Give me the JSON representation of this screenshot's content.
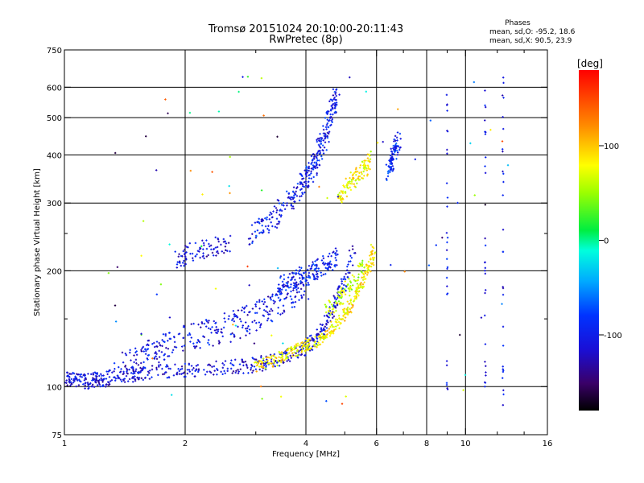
{
  "chart_data": {
    "type": "scatter",
    "title": "Tromsø 20151024 20:10:00-20:11:43",
    "subtitle": "RwPretec (8p)",
    "xlabel": "Frequency [MHz]",
    "ylabel": "Stationary phase Virtual Height [km]",
    "x_scale": "log",
    "y_scale": "log",
    "xlim": [
      1,
      16
    ],
    "ylim": [
      75,
      750
    ],
    "x_ticks": [
      1,
      2,
      4,
      6,
      8,
      10,
      16
    ],
    "x_tick_labels": [
      "1",
      "2",
      "4",
      "6",
      "8",
      "10",
      "16"
    ],
    "x_grid": [
      2,
      4,
      6,
      8,
      10
    ],
    "x_minor_ticks": [
      3,
      5,
      7,
      9,
      12,
      14
    ],
    "y_ticks": [
      75,
      100,
      200,
      300,
      400,
      500,
      600,
      750
    ],
    "y_tick_labels": [
      "75",
      "100",
      "200",
      "300",
      "400",
      "500",
      "600",
      "750"
    ],
    "y_grid": [
      100,
      200,
      300,
      400,
      500,
      600
    ],
    "y_minor_ticks": [
      150,
      250
    ],
    "grid": true,
    "stats": {
      "header": "Phases",
      "line_o": "mean, sd,O: -95.2, 18.6",
      "line_x": "mean, sd,X:  90.5, 23.9"
    },
    "colorbar": {
      "label": "[deg]",
      "min": -180,
      "max": 180,
      "ticks": [
        100,
        0,
        -100
      ],
      "tick_labels": [
        "100",
        "0",
        "-100"
      ],
      "colormap": "rainbow"
    },
    "traces": [
      {
        "name": "",
        "phase": -110,
        "spread": 0.045,
        "points": [
          [
            1.0,
            104
          ],
          [
            1.05,
            105
          ],
          [
            1.1,
            104
          ],
          [
            1.15,
            103
          ],
          [
            1.2,
            105
          ],
          [
            1.25,
            104
          ],
          [
            1.3,
            107
          ],
          [
            1.4,
            108
          ],
          [
            1.5,
            107
          ],
          [
            1.6,
            109
          ],
          [
            1.8,
            110
          ],
          [
            2.0,
            110
          ],
          [
            2.2,
            111
          ],
          [
            2.5,
            112
          ],
          [
            2.8,
            113
          ],
          [
            3.0,
            114
          ],
          [
            3.2,
            116
          ],
          [
            3.5,
            119
          ],
          [
            3.8,
            123
          ],
          [
            4.0,
            127
          ],
          [
            4.2,
            132
          ],
          [
            4.4,
            140
          ],
          [
            4.6,
            152
          ],
          [
            4.8,
            168
          ],
          [
            5.0,
            190
          ],
          [
            5.3,
            230
          ]
        ]
      },
      {
        "name": "",
        "phase": -105,
        "spread": 0.09,
        "points": [
          [
            1.4,
            112
          ],
          [
            1.5,
            116
          ],
          [
            1.6,
            120
          ],
          [
            1.7,
            124
          ],
          [
            1.8,
            128
          ],
          [
            2.0,
            133
          ],
          [
            2.2,
            136
          ],
          [
            2.4,
            140
          ],
          [
            2.6,
            143
          ],
          [
            2.8,
            148
          ],
          [
            3.0,
            152
          ],
          [
            3.2,
            158
          ],
          [
            3.4,
            165
          ],
          [
            3.6,
            172
          ],
          [
            3.8,
            178
          ],
          [
            4.0,
            183
          ]
        ]
      },
      {
        "name": "",
        "phase": -112,
        "spread": 0.06,
        "points": [
          [
            1.9,
            215
          ],
          [
            2.0,
            220
          ],
          [
            2.2,
            226
          ],
          [
            2.4,
            232
          ],
          [
            2.6,
            235
          ]
        ]
      },
      {
        "name": "",
        "phase": -100,
        "spread": 0.07,
        "points": [
          [
            2.9,
            250
          ],
          [
            3.1,
            260
          ],
          [
            3.3,
            272
          ],
          [
            3.5,
            290
          ],
          [
            3.7,
            310
          ],
          [
            3.9,
            335
          ],
          [
            4.0,
            345
          ],
          [
            4.1,
            360
          ],
          [
            4.2,
            380
          ],
          [
            4.3,
            405
          ],
          [
            4.4,
            430
          ],
          [
            4.5,
            460
          ],
          [
            4.6,
            500
          ],
          [
            4.7,
            540
          ],
          [
            4.8,
            580
          ]
        ]
      },
      {
        "name": "",
        "phase": -95,
        "spread": 0.06,
        "points": [
          [
            3.4,
            180
          ],
          [
            3.6,
            186
          ],
          [
            3.8,
            190
          ],
          [
            4.0,
            195
          ],
          [
            4.2,
            200
          ],
          [
            4.4,
            205
          ],
          [
            4.6,
            210
          ],
          [
            4.8,
            220
          ]
        ]
      },
      {
        "name": "",
        "phase": -92,
        "spread": 0.05,
        "points": [
          [
            6.4,
            360
          ],
          [
            6.5,
            375
          ],
          [
            6.6,
            395
          ],
          [
            6.7,
            420
          ],
          [
            6.8,
            440
          ]
        ]
      },
      {
        "name": "",
        "phase": 85,
        "spread": 0.035,
        "points": [
          [
            3.0,
            112
          ],
          [
            3.2,
            115
          ],
          [
            3.4,
            118
          ],
          [
            3.6,
            121
          ],
          [
            3.8,
            125
          ],
          [
            4.0,
            128
          ],
          [
            4.2,
            130
          ],
          [
            4.4,
            134
          ],
          [
            4.6,
            140
          ],
          [
            4.8,
            146
          ],
          [
            5.0,
            155
          ],
          [
            5.2,
            165
          ],
          [
            5.4,
            178
          ],
          [
            5.6,
            192
          ],
          [
            5.8,
            210
          ],
          [
            5.9,
            230
          ]
        ]
      },
      {
        "name": "",
        "phase": 80,
        "spread": 0.05,
        "points": [
          [
            4.8,
            300
          ],
          [
            5.0,
            320
          ],
          [
            5.2,
            340
          ],
          [
            5.4,
            355
          ],
          [
            5.6,
            370
          ],
          [
            5.8,
            400
          ]
        ]
      },
      {
        "name": "",
        "phase": 60,
        "spread": 0.05,
        "points": [
          [
            4.5,
            160
          ],
          [
            4.8,
            165
          ],
          [
            5.0,
            175
          ],
          [
            5.3,
            190
          ],
          [
            5.6,
            205
          ]
        ]
      }
    ],
    "columns": [
      {
        "x": 12.4,
        "phase": -105,
        "y_from": 84,
        "y_to": 650
      },
      {
        "x": 11.2,
        "phase": -105,
        "y_from": 100,
        "y_to": 610
      },
      {
        "x": 9.0,
        "phase": -100,
        "y_from": 96,
        "y_to": 600
      }
    ]
  }
}
